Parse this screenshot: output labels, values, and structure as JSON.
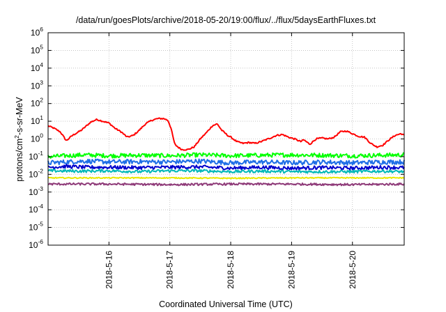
{
  "chart_data": {
    "type": "line",
    "title": "/data/run/goesPlots/archive/2018-05-20/19:00/flux/../flux/5daysEarthFluxes.txt",
    "xlabel": "Coordinated Universal Time (UTC)",
    "ylabel": {
      "prefix": "protons/cm",
      "sup": "2",
      "suffix": "-s-sr-MeV"
    },
    "ylog": true,
    "ylim": [
      1e-06,
      1000000.0
    ],
    "xlim": [
      0,
      5.85
    ],
    "grid": true,
    "x_unit": "days since 2018-05-15 00:00 UTC (x axis range)",
    "y_ticks": [
      {
        "base": "10",
        "exp": "-6",
        "value": -6
      },
      {
        "base": "10",
        "exp": "-5",
        "value": -5
      },
      {
        "base": "10",
        "exp": "-4",
        "value": -4
      },
      {
        "base": "10",
        "exp": "-3",
        "value": -3
      },
      {
        "base": "10",
        "exp": "-2",
        "value": -2
      },
      {
        "base": "10",
        "exp": "-1",
        "value": -1
      },
      {
        "base": "10",
        "exp": "0",
        "value": 0
      },
      {
        "base": "10",
        "exp": "1",
        "value": 1
      },
      {
        "base": "10",
        "exp": "2",
        "value": 2
      },
      {
        "base": "10",
        "exp": "3",
        "value": 3
      },
      {
        "base": "10",
        "exp": "4",
        "value": 4
      },
      {
        "base": "10",
        "exp": "5",
        "value": 5
      },
      {
        "base": "10",
        "exp": "6",
        "value": 6
      }
    ],
    "x_ticks": [
      {
        "label": "2018-5-16",
        "value": 1
      },
      {
        "label": "2018-5-17",
        "value": 2
      },
      {
        "label": "2018-5-18",
        "value": 3
      },
      {
        "label": "2018-5-19",
        "value": 4
      },
      {
        "label": "2018-5-20",
        "value": 5
      }
    ],
    "series": [
      {
        "color": "#ff0000",
        "noise": 0.04,
        "points": [
          [
            0,
            0.74
          ],
          [
            0.1,
            0.6
          ],
          [
            0.2,
            0.4
          ],
          [
            0.3,
            -0.1
          ],
          [
            0.4,
            0.2
          ],
          [
            0.55,
            0.5
          ],
          [
            0.7,
            0.95
          ],
          [
            0.8,
            1.1
          ],
          [
            0.9,
            1.0
          ],
          [
            1.0,
            0.9
          ],
          [
            1.1,
            0.6
          ],
          [
            1.2,
            0.4
          ],
          [
            1.3,
            0.1
          ],
          [
            1.4,
            0.2
          ],
          [
            1.5,
            0.5
          ],
          [
            1.6,
            0.85
          ],
          [
            1.7,
            1.05
          ],
          [
            1.8,
            1.15
          ],
          [
            1.9,
            1.15
          ],
          [
            1.97,
            1.05
          ],
          [
            2.02,
            0.6
          ],
          [
            2.08,
            -0.3
          ],
          [
            2.15,
            -0.5
          ],
          [
            2.2,
            -0.6
          ],
          [
            2.3,
            -0.6
          ],
          [
            2.4,
            -0.45
          ],
          [
            2.5,
            0.0
          ],
          [
            2.6,
            0.35
          ],
          [
            2.7,
            0.75
          ],
          [
            2.78,
            0.85
          ],
          [
            2.85,
            0.5
          ],
          [
            2.95,
            0.2
          ],
          [
            3.0,
            0.1
          ],
          [
            3.1,
            -0.15
          ],
          [
            3.2,
            -0.25
          ],
          [
            3.3,
            -0.2
          ],
          [
            3.4,
            -0.25
          ],
          [
            3.5,
            -0.15
          ],
          [
            3.65,
            0.05
          ],
          [
            3.75,
            0.2
          ],
          [
            3.85,
            0.25
          ],
          [
            3.95,
            0.1
          ],
          [
            4.05,
            0.0
          ],
          [
            4.15,
            -0.15
          ],
          [
            4.2,
            -0.05
          ],
          [
            4.3,
            -0.3
          ],
          [
            4.4,
            0.0
          ],
          [
            4.5,
            0.05
          ],
          [
            4.6,
            0.0
          ],
          [
            4.7,
            0.1
          ],
          [
            4.8,
            0.4
          ],
          [
            4.9,
            0.45
          ],
          [
            5.0,
            0.3
          ],
          [
            5.1,
            0.15
          ],
          [
            5.2,
            0.1
          ],
          [
            5.3,
            -0.25
          ],
          [
            5.4,
            -0.45
          ],
          [
            5.5,
            -0.35
          ],
          [
            5.6,
            -0.05
          ],
          [
            5.7,
            0.2
          ],
          [
            5.8,
            0.3
          ],
          [
            5.85,
            0.2
          ]
        ]
      },
      {
        "color": "#00ff00",
        "noise": 0.12,
        "points": [
          [
            0,
            -1.0
          ],
          [
            0.3,
            -0.95
          ],
          [
            0.6,
            -0.9
          ],
          [
            1.0,
            -0.95
          ],
          [
            1.5,
            -0.92
          ],
          [
            2.0,
            -0.95
          ],
          [
            2.5,
            -0.9
          ],
          [
            3.0,
            -0.95
          ],
          [
            3.5,
            -0.92
          ],
          [
            4.0,
            -0.9
          ],
          [
            4.5,
            -0.92
          ],
          [
            5.0,
            -0.95
          ],
          [
            5.5,
            -0.92
          ],
          [
            5.85,
            -0.9
          ]
        ]
      },
      {
        "color": "#1e6ee6",
        "noise": 0.13,
        "points": [
          [
            0,
            -1.35
          ],
          [
            0.3,
            -1.3
          ],
          [
            0.6,
            -1.25
          ],
          [
            1.0,
            -1.3
          ],
          [
            1.5,
            -1.28
          ],
          [
            2.0,
            -1.3
          ],
          [
            2.5,
            -1.25
          ],
          [
            3.0,
            -1.35
          ],
          [
            3.5,
            -1.3
          ],
          [
            4.0,
            -1.35
          ],
          [
            4.5,
            -1.3
          ],
          [
            5.0,
            -1.35
          ],
          [
            5.5,
            -1.3
          ],
          [
            5.85,
            -1.3
          ]
        ]
      },
      {
        "color": "#0000cc",
        "noise": 0.1,
        "points": [
          [
            0,
            -1.6
          ],
          [
            0.3,
            -1.55
          ],
          [
            0.6,
            -1.6
          ],
          [
            1.0,
            -1.6
          ],
          [
            1.5,
            -1.62
          ],
          [
            2.0,
            -1.6
          ],
          [
            2.5,
            -1.58
          ],
          [
            3.0,
            -1.65
          ],
          [
            3.5,
            -1.6
          ],
          [
            4.0,
            -1.65
          ],
          [
            4.5,
            -1.62
          ],
          [
            5.0,
            -1.65
          ],
          [
            5.5,
            -1.6
          ],
          [
            5.85,
            -1.62
          ]
        ]
      },
      {
        "color": "#00b8b8",
        "noise": 0.08,
        "points": [
          [
            0,
            -1.8
          ],
          [
            0.5,
            -1.82
          ],
          [
            1.0,
            -1.8
          ],
          [
            1.5,
            -1.85
          ],
          [
            2.0,
            -1.8
          ],
          [
            2.5,
            -1.8
          ],
          [
            3.0,
            -1.85
          ],
          [
            3.5,
            -1.82
          ],
          [
            4.0,
            -1.85
          ],
          [
            4.5,
            -1.85
          ],
          [
            5.0,
            -1.85
          ],
          [
            5.5,
            -1.82
          ],
          [
            5.85,
            -1.85
          ]
        ]
      },
      {
        "color": "#e8e800",
        "noise": 0.03,
        "points": [
          [
            0,
            -2.2
          ],
          [
            1.0,
            -2.2
          ],
          [
            2.0,
            -2.2
          ],
          [
            3.0,
            -2.22
          ],
          [
            4.0,
            -2.2
          ],
          [
            5.0,
            -2.2
          ],
          [
            5.85,
            -2.2
          ]
        ]
      },
      {
        "color": "#8e3a78",
        "noise": 0.06,
        "points": [
          [
            0,
            -2.55
          ],
          [
            1.0,
            -2.55
          ],
          [
            2.0,
            -2.58
          ],
          [
            3.0,
            -2.55
          ],
          [
            4.0,
            -2.55
          ],
          [
            5.0,
            -2.58
          ],
          [
            5.85,
            -2.55
          ]
        ]
      }
    ]
  }
}
